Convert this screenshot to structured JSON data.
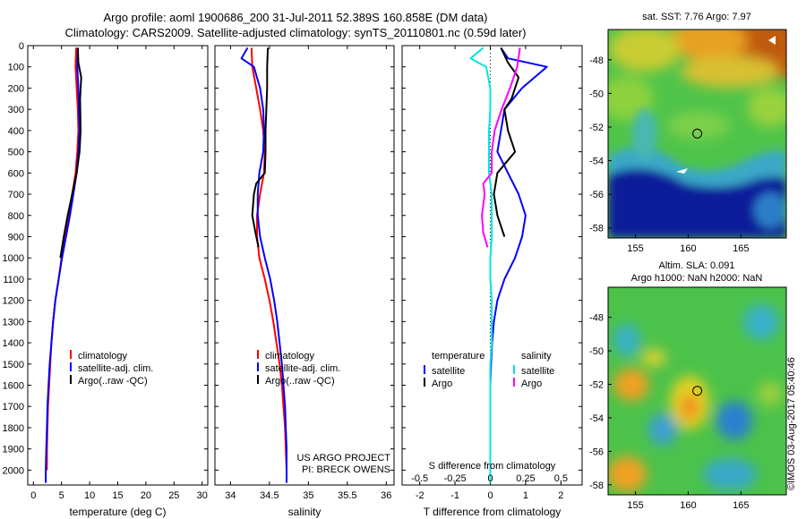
{
  "header": {
    "line1": "Argo profile: aoml 1900686_200 31-Jul-2011 52.389S 160.858E (DM data)",
    "line2": "Climatology: CARS2009. Satellite-adjusted climatology: synTS_20110801.nc (0.59d later)"
  },
  "colors": {
    "climatology": "#ff0000",
    "satellite": "#0000ff",
    "argo": "#000000",
    "salinity_satellite": "#00e5e5",
    "salinity_argo": "#ff00ff"
  },
  "chart_data": [
    {
      "type": "line",
      "id": "temperature",
      "xlabel": "temperature (deg C)",
      "ylabel": "",
      "xlim": [
        -1,
        31
      ],
      "ylim": [
        2070,
        0
      ],
      "x_ticks": [
        "0",
        "5",
        "10",
        "15",
        "20",
        "25",
        "30"
      ],
      "x_tick_values": [
        0,
        5,
        10,
        15,
        20,
        25,
        30
      ],
      "y_ticks": [
        "0",
        "100",
        "200",
        "300",
        "400",
        "500",
        "600",
        "700",
        "800",
        "900",
        "1000",
        "1100",
        "1200",
        "1300",
        "1400",
        "1500",
        "1600",
        "1700",
        "1800",
        "1900",
        "2000"
      ],
      "y_tick_values": [
        0,
        100,
        200,
        300,
        400,
        500,
        600,
        700,
        800,
        900,
        1000,
        1100,
        1200,
        1300,
        1400,
        1500,
        1600,
        1700,
        1800,
        1900,
        2000
      ],
      "legend": [
        "climatology",
        "satellite-adj. clim.",
        "Argo(..raw -QC)"
      ],
      "legend_position": "lower-middle",
      "series": [
        {
          "name": "climatology",
          "color": "#ff0000",
          "x": [
            7.6,
            7.5,
            7.7,
            7.9,
            8.0,
            7.8,
            7.5,
            6.9,
            6.3,
            5.6,
            5.0,
            4.5,
            3.9,
            3.5,
            3.2,
            3.0,
            2.8,
            2.6,
            2.5,
            2.4,
            2.4
          ],
          "y": [
            10,
            100,
            200,
            300,
            400,
            500,
            600,
            700,
            800,
            900,
            1000,
            1100,
            1200,
            1300,
            1400,
            1500,
            1600,
            1700,
            1800,
            1900,
            2000
          ]
        },
        {
          "name": "satellite-adj. clim.",
          "color": "#0000ff",
          "x": [
            7.9,
            7.8,
            8.0,
            8.1,
            8.2,
            8.0,
            7.7,
            7.1,
            6.5,
            5.8,
            5.1,
            4.5,
            3.9,
            3.5,
            3.2,
            2.9,
            2.7,
            2.5,
            2.4,
            2.3,
            2.2,
            2.2
          ],
          "y": [
            10,
            100,
            200,
            300,
            400,
            500,
            600,
            700,
            800,
            900,
            1000,
            1100,
            1200,
            1300,
            1400,
            1500,
            1600,
            1700,
            1800,
            1900,
            2000,
            2060
          ]
        },
        {
          "name": "Argo(..raw -QC)",
          "color": "#000000",
          "x": [
            7.9,
            8.0,
            8.5,
            8.3,
            8.4,
            8.2,
            7.7,
            6.9,
            6.1,
            5.4,
            4.8
          ],
          "y": [
            10,
            80,
            150,
            250,
            400,
            500,
            600,
            700,
            800,
            900,
            1000
          ]
        }
      ]
    },
    {
      "type": "line",
      "id": "salinity",
      "xlabel": "salinity",
      "xlim": [
        33.8,
        36.1
      ],
      "ylim": [
        2070,
        0
      ],
      "x_ticks": [
        "34",
        "34.5",
        "35",
        "35.5",
        "36"
      ],
      "x_tick_values": [
        34,
        34.5,
        35,
        35.5,
        36
      ],
      "legend": [
        "climatology",
        "satellite-adj. clim.",
        "Argo(..raw -QC)"
      ],
      "legend_position": "lower-middle",
      "annotation": [
        "US ARGO PROJECT",
        "PI: BRECK OWENS"
      ],
      "series": [
        {
          "name": "climatology",
          "color": "#ff0000",
          "x": [
            34.27,
            34.28,
            34.33,
            34.38,
            34.42,
            34.44,
            34.43,
            34.38,
            34.34,
            34.34,
            34.37,
            34.44,
            34.5,
            34.55,
            34.59,
            34.63,
            34.66,
            34.68,
            34.7,
            34.71,
            34.72
          ],
          "y": [
            10,
            100,
            200,
            300,
            400,
            500,
            600,
            700,
            800,
            900,
            1000,
            1100,
            1200,
            1300,
            1400,
            1500,
            1600,
            1700,
            1800,
            1900,
            2000
          ]
        },
        {
          "name": "satellite-adj. clim.",
          "color": "#0000ff",
          "x": [
            34.22,
            34.14,
            34.3,
            34.38,
            34.42,
            34.43,
            34.42,
            34.37,
            34.35,
            34.35,
            34.38,
            34.44,
            34.51,
            34.56,
            34.6,
            34.63,
            34.66,
            34.68,
            34.7,
            34.71,
            34.72,
            34.72
          ],
          "y": [
            10,
            60,
            100,
            200,
            300,
            400,
            500,
            600,
            700,
            800,
            900,
            1000,
            1100,
            1200,
            1300,
            1400,
            1500,
            1600,
            1700,
            1800,
            1900,
            2060
          ]
        },
        {
          "name": "Argo(..raw -QC)",
          "color": "#000000",
          "x": [
            34.48,
            34.47,
            34.47,
            34.46,
            34.45,
            34.45,
            34.44,
            34.33,
            34.3,
            34.28,
            34.32,
            34.36
          ],
          "y": [
            10,
            100,
            200,
            300,
            400,
            500,
            600,
            650,
            700,
            800,
            880,
            950
          ]
        }
      ]
    },
    {
      "type": "line",
      "id": "difference",
      "xlabel": "T difference from climatology",
      "xlabel_top": "S difference from climatology",
      "xlim": [
        -2.5,
        2.6
      ],
      "ylim": [
        2070,
        0
      ],
      "x_ticks": [
        "-2",
        "-1",
        "0",
        "1",
        "2"
      ],
      "x_tick_values": [
        -2,
        -1,
        0,
        1,
        2
      ],
      "s_ticks": [
        "-0.5",
        "-0.25",
        "0",
        "0.25",
        "0.5"
      ],
      "s_tick_values": [
        -0.5,
        -0.25,
        0,
        0.25,
        0.5
      ],
      "legend_groups": [
        {
          "title": "temperature",
          "items": [
            "satellite",
            "Argo"
          ]
        },
        {
          "title": "salinity",
          "items": [
            "satellite",
            "Argo"
          ]
        }
      ],
      "series": [
        {
          "name": "temperature satellite",
          "color": "#0000ff",
          "x": [
            0.3,
            0.5,
            1.6,
            0.9,
            0.4,
            0.3,
            0.2,
            0.5,
            0.8,
            1.0,
            0.9,
            0.7,
            0.4,
            0.2,
            0.1,
            0.05,
            0.02,
            0.0,
            0.0,
            0.0,
            0.0,
            0.0
          ],
          "y": [
            10,
            60,
            100,
            200,
            300,
            400,
            500,
            600,
            700,
            800,
            900,
            1000,
            1100,
            1200,
            1300,
            1400,
            1500,
            1600,
            1700,
            1800,
            1900,
            2060
          ]
        },
        {
          "name": "temperature Argo",
          "color": "#000000",
          "x": [
            0.3,
            0.5,
            0.8,
            0.6,
            0.4,
            0.5,
            0.7,
            0.2,
            0.1,
            0.2,
            0.4
          ],
          "y": [
            10,
            80,
            150,
            250,
            300,
            400,
            500,
            600,
            700,
            800,
            900
          ]
        },
        {
          "name": "salinity satellite",
          "color": "#00e5e5",
          "x": [
            -0.05,
            -0.14,
            -0.03,
            0.0,
            0.0,
            -0.01,
            -0.01,
            -0.01,
            0.01,
            0.01,
            0.01,
            0.0,
            0.0,
            0.01,
            0.01,
            0.01,
            0.0,
            0.0,
            0.0,
            0.0,
            0.0,
            0.0
          ],
          "y": [
            10,
            60,
            100,
            200,
            300,
            400,
            500,
            600,
            700,
            800,
            900,
            1000,
            1100,
            1200,
            1300,
            1400,
            1500,
            1600,
            1700,
            1800,
            1900,
            2060
          ]
        },
        {
          "name": "salinity Argo",
          "color": "#ff00ff",
          "x": [
            0.21,
            0.19,
            0.14,
            0.08,
            0.03,
            0.01,
            0.01,
            -0.05,
            -0.04,
            -0.06,
            -0.05,
            -0.02
          ],
          "y": [
            10,
            100,
            200,
            300,
            400,
            500,
            600,
            650,
            700,
            800,
            880,
            950
          ]
        }
      ]
    }
  ],
  "maps": [
    {
      "id": "sst",
      "title": "sat. SST: 7.76 Argo: 7.97",
      "x_ticks": [
        "155",
        "160",
        "165"
      ],
      "x_tick_values": [
        155,
        160,
        165
      ],
      "y_ticks": [
        "-48",
        "-50",
        "-52",
        "-54",
        "-56",
        "-58"
      ],
      "y_tick_values": [
        -48,
        -50,
        -52,
        -54,
        -56,
        -58
      ],
      "xlim": [
        152.4,
        169.3
      ],
      "ylim": [
        -58.6,
        -46.2
      ],
      "marker": {
        "lon": 160.858,
        "lat": -52.389
      }
    },
    {
      "id": "sla",
      "title_lines": [
        "Altim. SLA: 0.091",
        "Argo h1000: NaN h2000: NaN"
      ],
      "x_ticks": [
        "155",
        "160",
        "165"
      ],
      "x_tick_values": [
        155,
        160,
        165
      ],
      "y_ticks": [
        "-48",
        "-50",
        "-52",
        "-54",
        "-56",
        "-58"
      ],
      "y_tick_values": [
        -48,
        -50,
        -52,
        -54,
        -56,
        -58
      ],
      "xlim": [
        152.4,
        169.3
      ],
      "ylim": [
        -58.6,
        -46.2
      ],
      "marker": {
        "lon": 160.858,
        "lat": -52.389
      }
    }
  ],
  "credit": "©IMOS 03-Aug-2017 05:40:46"
}
